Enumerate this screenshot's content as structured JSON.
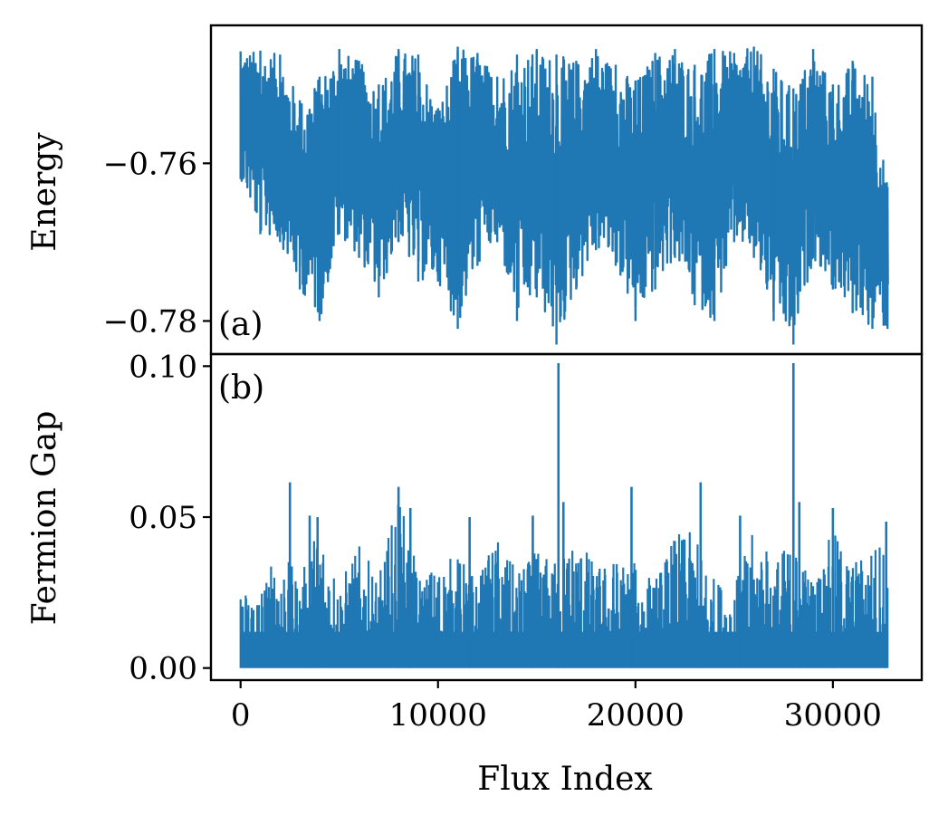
{
  "chart_data": [
    {
      "type": "line",
      "panel_label": "(a)",
      "ylabel": "Energy",
      "xlabel": "",
      "xlim": [
        -1500,
        34500
      ],
      "ylim": [
        -0.7842,
        -0.7425
      ],
      "yticks": [
        -0.78,
        -0.76
      ],
      "ytick_labels": [
        "−0.78",
        "−0.76"
      ],
      "xticks": [],
      "grid": false,
      "color": "#1f77b4",
      "x": [
        0,
        1000,
        2000,
        3000,
        4000,
        5000,
        6000,
        7000,
        8000,
        9000,
        10000,
        11000,
        12000,
        13000,
        14000,
        15000,
        16000,
        17000,
        18000,
        19000,
        20000,
        21000,
        22000,
        23000,
        24000,
        25000,
        26000,
        27000,
        28000,
        29000,
        30000,
        31000,
        32000,
        32767
      ],
      "y_max": [
        -0.7458,
        -0.7457,
        -0.7462,
        -0.752,
        -0.749,
        -0.7455,
        -0.747,
        -0.75,
        -0.7455,
        -0.7462,
        -0.753,
        -0.7452,
        -0.746,
        -0.749,
        -0.7462,
        -0.7455,
        -0.7462,
        -0.747,
        -0.7455,
        -0.7475,
        -0.7495,
        -0.746,
        -0.7455,
        -0.7475,
        -0.7455,
        -0.746,
        -0.7452,
        -0.748,
        -0.7505,
        -0.7455,
        -0.75,
        -0.747,
        -0.749,
        -0.763
      ],
      "y_min": [
        -0.762,
        -0.769,
        -0.77,
        -0.776,
        -0.78,
        -0.769,
        -0.772,
        -0.777,
        -0.77,
        -0.775,
        -0.775,
        -0.781,
        -0.773,
        -0.77,
        -0.78,
        -0.777,
        -0.783,
        -0.776,
        -0.771,
        -0.773,
        -0.78,
        -0.776,
        -0.772,
        -0.778,
        -0.78,
        -0.77,
        -0.772,
        -0.78,
        -0.783,
        -0.772,
        -0.776,
        -0.779,
        -0.781,
        -0.781
      ]
    },
    {
      "type": "line",
      "panel_label": "(b)",
      "ylabel": "Fermion Gap",
      "xlabel": "Flux Index",
      "xlim": [
        -1500,
        34500
      ],
      "ylim": [
        -0.004,
        0.104
      ],
      "yticks": [
        0.0,
        0.05,
        0.1
      ],
      "ytick_labels": [
        "0.00",
        "0.05",
        "0.10"
      ],
      "xticks": [
        0,
        10000,
        20000,
        30000
      ],
      "xtick_labels": [
        "0",
        "10000",
        "20000",
        "30000"
      ],
      "grid": false,
      "color": "#1f77b4",
      "x": [
        0,
        1000,
        2000,
        3000,
        4000,
        5000,
        6000,
        7000,
        8000,
        9000,
        10000,
        11000,
        12000,
        13000,
        14000,
        15000,
        16000,
        17000,
        18000,
        19000,
        20000,
        21000,
        22000,
        23000,
        24000,
        25000,
        26000,
        27000,
        28000,
        29000,
        30000,
        31000,
        32000,
        32767
      ],
      "y_min": 0.0,
      "y_max": [
        0.026,
        0.028,
        0.041,
        0.029,
        0.051,
        0.029,
        0.041,
        0.03,
        0.059,
        0.031,
        0.035,
        0.038,
        0.03,
        0.044,
        0.032,
        0.039,
        0.036,
        0.046,
        0.034,
        0.037,
        0.035,
        0.03,
        0.045,
        0.045,
        0.03,
        0.028,
        0.046,
        0.037,
        0.043,
        0.03,
        0.046,
        0.036,
        0.041,
        0.048
      ],
      "peaks": [
        {
          "x": 2500,
          "y": 0.0615
        },
        {
          "x": 3500,
          "y": 0.0505
        },
        {
          "x": 3900,
          "y": 0.05
        },
        {
          "x": 8000,
          "y": 0.06
        },
        {
          "x": 8600,
          "y": 0.053
        },
        {
          "x": 11600,
          "y": 0.05
        },
        {
          "x": 14800,
          "y": 0.0505
        },
        {
          "x": 16100,
          "y": 0.101
        },
        {
          "x": 16350,
          "y": 0.055
        },
        {
          "x": 19800,
          "y": 0.06
        },
        {
          "x": 23300,
          "y": 0.0615
        },
        {
          "x": 25300,
          "y": 0.0505
        },
        {
          "x": 28000,
          "y": 0.101
        },
        {
          "x": 28300,
          "y": 0.055
        },
        {
          "x": 30000,
          "y": 0.053
        },
        {
          "x": 32700,
          "y": 0.0485
        }
      ]
    }
  ]
}
